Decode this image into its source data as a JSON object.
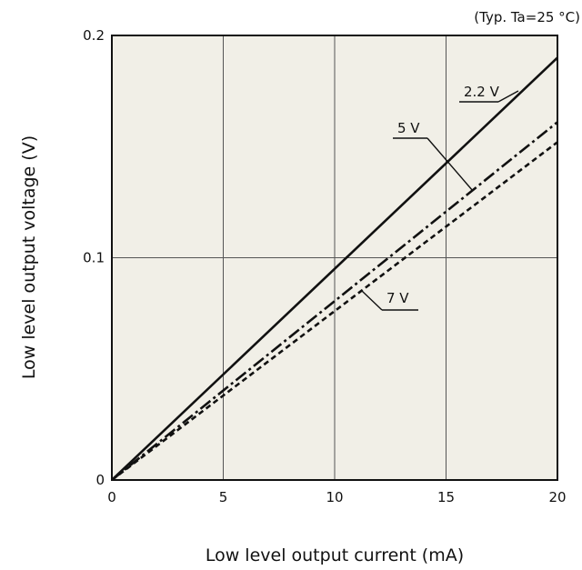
{
  "chart_data": {
    "type": "line",
    "title": "",
    "note": "(Typ. Ta=25 °C)",
    "xlabel": "Low level output current (mA)",
    "ylabel": "Low level output voltage (V)",
    "xlim": [
      0,
      20
    ],
    "ylim": [
      0,
      0.2
    ],
    "xticks": [
      0,
      5,
      10,
      15,
      20
    ],
    "xtick_labels": [
      "0",
      "5",
      "10",
      "15",
      "20"
    ],
    "yticks": [
      0,
      0.1,
      0.2
    ],
    "ytick_labels": [
      "0",
      "0.1",
      "0.2"
    ],
    "grid": true,
    "plot_background": "#f1efe7",
    "series": [
      {
        "name": "2.2 V",
        "style": "solid",
        "x": [
          0,
          20
        ],
        "y": [
          0,
          0.19
        ]
      },
      {
        "name": "5 V",
        "style": "dashdot",
        "x": [
          0,
          20
        ],
        "y": [
          0,
          0.161
        ]
      },
      {
        "name": "7 V",
        "style": "dashed",
        "x": [
          0,
          20
        ],
        "y": [
          0,
          0.152
        ]
      }
    ]
  }
}
